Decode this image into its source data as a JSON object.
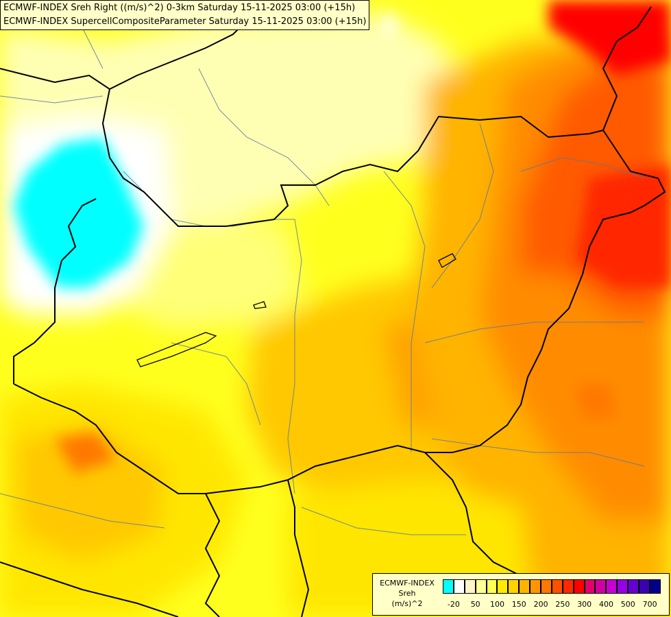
{
  "title": {
    "line1": "ECMWF-INDEX Sreh Right ((m/s)^2) 0-3km Saturday 15-11-2025 03:00 (+15h)",
    "line2": "ECMWF-INDEX SupercellCompositeParameter Saturday 15-11-2025 03:00 (+15h)"
  },
  "legend": {
    "line1": "ECMWF-INDEX",
    "line2": "Sreh",
    "line3": "(m/s)^2",
    "colors": [
      "#00ffff",
      "#ffffff",
      "#fff5c8",
      "#ffff96",
      "#ffff50",
      "#ffea00",
      "#ffd200",
      "#ffb400",
      "#ff9600",
      "#ff7800",
      "#ff5000",
      "#ff2800",
      "#ff0000",
      "#e6006e",
      "#d200a0",
      "#c800d2",
      "#9600e6",
      "#6400d2",
      "#3c00b4",
      "#00008c"
    ],
    "ticks": [
      "-20",
      "50",
      "100",
      "150",
      "200",
      "250",
      "300",
      "400",
      "500",
      "700"
    ]
  },
  "map": {
    "field_colors": {
      "cyan": "#00ffff",
      "white": "#ffffff",
      "pale": "#ffffb4",
      "light": "#ffff78",
      "yellow": "#ffff00",
      "gold": "#ffe600",
      "amber": "#ffc800",
      "orange": "#ffa000",
      "dorange": "#ff7800",
      "red": "#ff4600",
      "crimson": "#ff0000"
    }
  }
}
